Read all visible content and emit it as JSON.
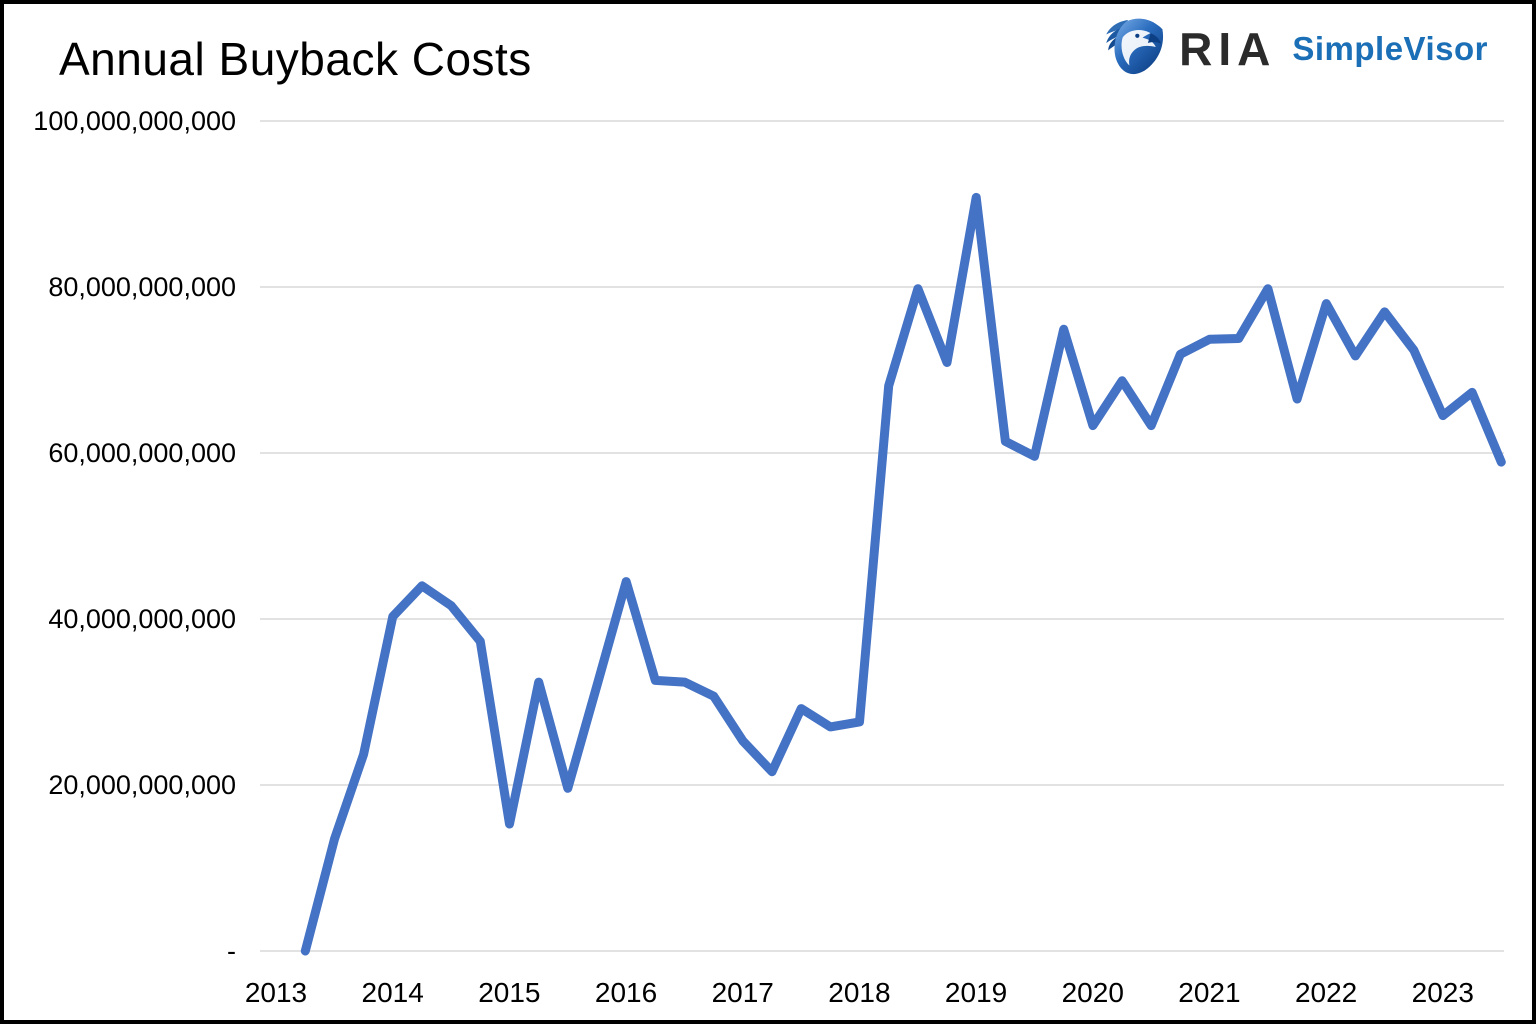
{
  "header": {
    "title": "Annual Buyback Costs",
    "logo": {
      "brand": "RIA",
      "product": "SimpleVisor",
      "brand_color": "#2b2b2b",
      "product_color": "#1b6fb6",
      "eagle_icon": "eagle-shield-icon"
    }
  },
  "chart_data": {
    "type": "line",
    "title": "Annual Buyback Costs",
    "unit": "USD",
    "values_unit": "billions of dollars",
    "legend": "none",
    "grid": "horizontal",
    "line_color": "#4472C4",
    "gridline_color": "#D9D9D9",
    "axis_text_color": "#000000",
    "ylim_billions": [
      0,
      100
    ],
    "x": [
      "2013 Q2",
      "2013 Q3",
      "2013 Q4",
      "2014 Q1",
      "2014 Q2",
      "2014 Q3",
      "2014 Q4",
      "2015 Q1",
      "2015 Q2",
      "2015 Q3",
      "2015 Q4",
      "2016 Q1",
      "2016 Q2",
      "2016 Q3",
      "2016 Q4",
      "2017 Q1",
      "2017 Q2",
      "2017 Q3",
      "2017 Q4",
      "2018 Q1",
      "2018 Q2",
      "2018 Q3",
      "2018 Q4",
      "2019 Q1",
      "2019 Q2",
      "2019 Q3",
      "2019 Q4",
      "2020 Q1",
      "2020 Q2",
      "2020 Q3",
      "2020 Q4",
      "2021 Q1",
      "2021 Q2",
      "2021 Q3",
      "2021 Q4",
      "2022 Q1",
      "2022 Q2",
      "2022 Q3",
      "2022 Q4",
      "2023 Q1",
      "2023 Q2",
      "2023 Q3"
    ],
    "values_billions": [
      0,
      13.5,
      23.7,
      40.3,
      44.0,
      41.6,
      37.3,
      15.3,
      32.4,
      19.6,
      32.0,
      44.5,
      32.6,
      32.4,
      30.7,
      25.3,
      21.6,
      29.2,
      27.0,
      27.6,
      68.1,
      79.8,
      70.9,
      90.8,
      61.4,
      59.6,
      74.9,
      63.3,
      68.7,
      63.3,
      71.9,
      73.7,
      73.8,
      79.8,
      66.5,
      78.0,
      71.7,
      77.0,
      72.4,
      64.5,
      67.3,
      58.9
    ],
    "x_tick_labels": [
      "2013",
      "2014",
      "2015",
      "2016",
      "2017",
      "2018",
      "2019",
      "2020",
      "2021",
      "2022",
      "2023"
    ],
    "y_ticks": [
      {
        "value_billions": 100,
        "label": "100,000,000,000"
      },
      {
        "value_billions": 80,
        "label": "80,000,000,000"
      },
      {
        "value_billions": 60,
        "label": "60,000,000,000"
      },
      {
        "value_billions": 40,
        "label": "40,000,000,000"
      },
      {
        "value_billions": 20,
        "label": "20,000,000,000"
      },
      {
        "value_billions": 0,
        "label": "-"
      }
    ]
  }
}
